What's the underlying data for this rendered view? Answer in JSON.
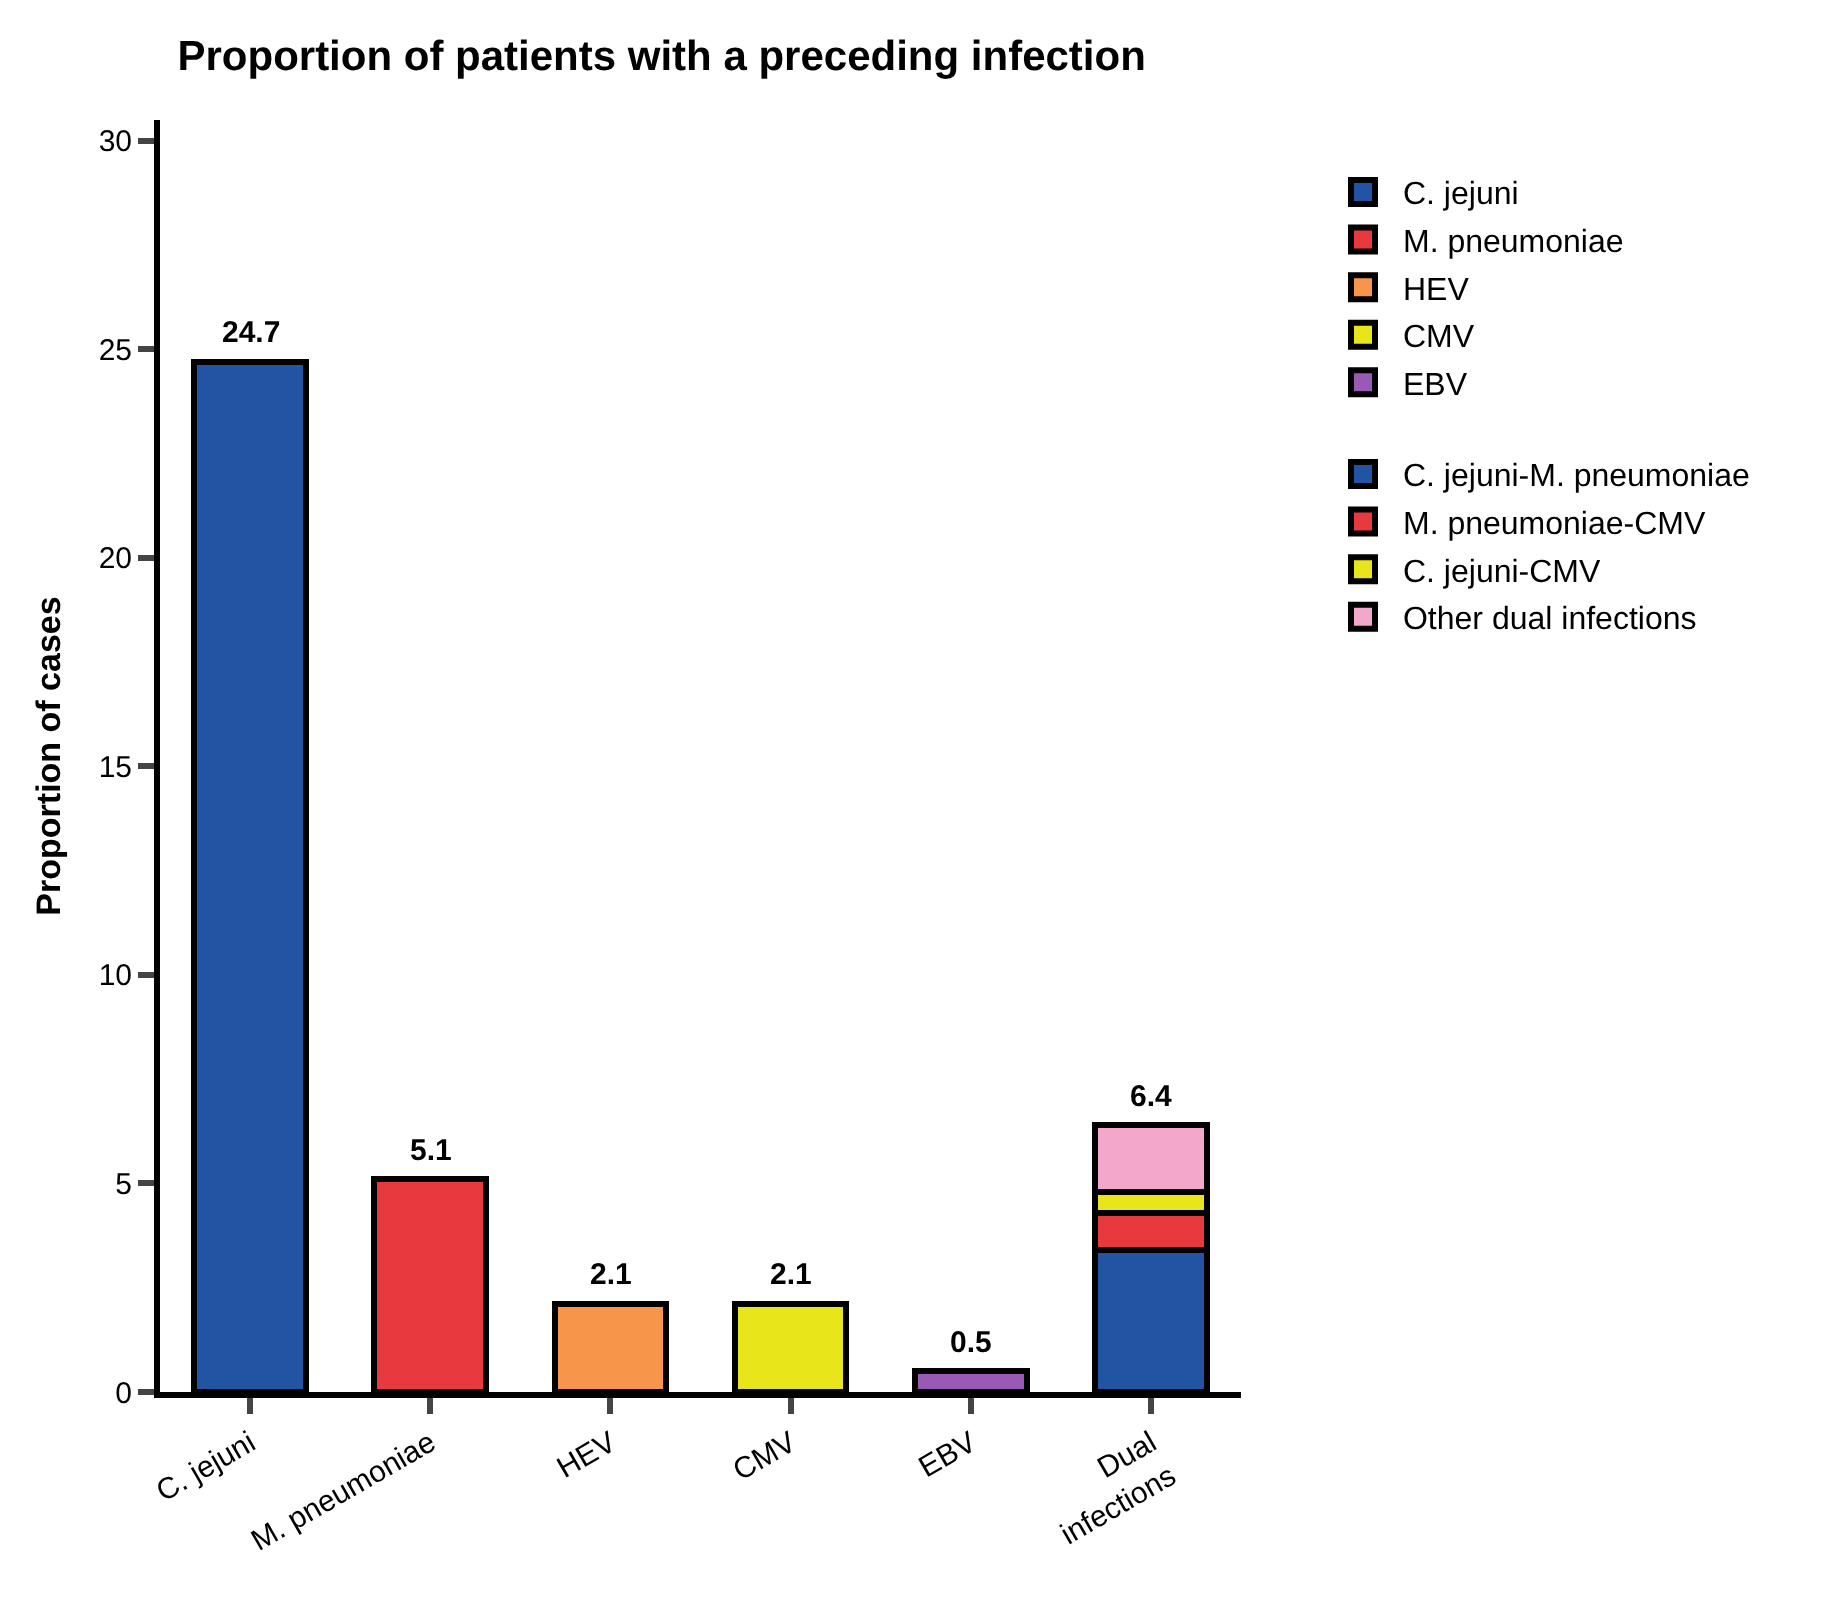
{
  "chart_data": {
    "type": "bar",
    "stacked": true,
    "title": "Proportion of patients with a preceding infection",
    "ylabel": "Proportion of cases",
    "categories": [
      "C. jejuni",
      "M. pneumoniae",
      "HEV",
      "CMV",
      "EBV",
      "Dual infections"
    ],
    "series": [
      {
        "name": "C. jejuni",
        "color": "#2155a4",
        "values": [
          24.7,
          null,
          null,
          null,
          null,
          null
        ]
      },
      {
        "name": "M. pneumoniae",
        "color": "#e8393e",
        "values": [
          null,
          5.1,
          null,
          null,
          null,
          null
        ]
      },
      {
        "name": "HEV",
        "color": "#f7954a",
        "values": [
          null,
          null,
          2.1,
          null,
          null,
          null
        ]
      },
      {
        "name": "CMV",
        "color": "#e8e61a",
        "values": [
          null,
          null,
          null,
          2.1,
          null,
          null
        ]
      },
      {
        "name": "EBV",
        "color": "#9b59b6",
        "values": [
          null,
          null,
          null,
          null,
          0.5,
          null
        ]
      },
      {
        "name": "C. jejuni-M. pneumoniae",
        "color": "#2155a4",
        "values": [
          null,
          null,
          null,
          null,
          null,
          3.4
        ]
      },
      {
        "name": "M. pneumoniae-CMV",
        "color": "#e8393e",
        "values": [
          null,
          null,
          null,
          null,
          null,
          0.9
        ]
      },
      {
        "name": "C. jejuni-CMV",
        "color": "#e8e61a",
        "values": [
          null,
          null,
          null,
          null,
          null,
          0.5
        ]
      },
      {
        "name": "Other dual infections",
        "color": "#f2a7cb",
        "values": [
          null,
          null,
          null,
          null,
          null,
          1.6
        ]
      }
    ],
    "totals": [
      "24.7",
      "5.1",
      "2.1",
      "2.1",
      "0.5",
      "6.4"
    ],
    "ylim": [
      0,
      30.5
    ],
    "yticks": [
      0,
      5,
      10,
      15,
      20,
      25,
      30
    ],
    "legend": "top right"
  }
}
